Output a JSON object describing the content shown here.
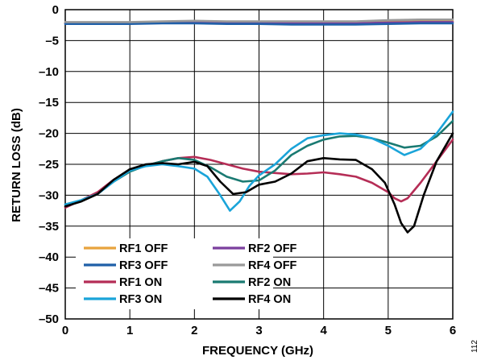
{
  "chart_data": {
    "type": "line",
    "xlabel": "FREQUENCY (GHz)",
    "ylabel": "RETURN LOSS (dB)",
    "xlim": [
      0,
      6
    ],
    "ylim": [
      -50,
      0
    ],
    "x_ticks": [
      0,
      1,
      2,
      3,
      4,
      5,
      6
    ],
    "y_ticks": [
      0,
      -5,
      -10,
      -15,
      -20,
      -25,
      -30,
      -35,
      -40,
      -45,
      -50
    ],
    "grid": true,
    "legend_position": "bottom-left",
    "figure_id": "112",
    "series": [
      {
        "name": "RF1 OFF",
        "color": "#E8A33D",
        "x": [
          0,
          0.5,
          1,
          1.5,
          2,
          2.5,
          3,
          3.5,
          4,
          4.5,
          5,
          5.5,
          6
        ],
        "y": [
          -2.1,
          -2.1,
          -2.1,
          -2.1,
          -2.0,
          -2.0,
          -2.0,
          -2.0,
          -2.1,
          -2.1,
          -2.0,
          -1.9,
          -1.9
        ]
      },
      {
        "name": "RF2 OFF",
        "color": "#7B3F9E",
        "x": [
          0,
          0.5,
          1,
          1.5,
          2,
          2.5,
          3,
          3.5,
          4,
          4.5,
          5,
          5.5,
          6
        ],
        "y": [
          -2.2,
          -2.2,
          -2.2,
          -2.1,
          -2.1,
          -2.1,
          -2.1,
          -2.2,
          -2.2,
          -2.2,
          -2.1,
          -2.0,
          -2.0
        ]
      },
      {
        "name": "RF3 OFF",
        "color": "#1F5FA8",
        "x": [
          0,
          0.5,
          1,
          1.5,
          2,
          2.5,
          3,
          3.5,
          4,
          4.5,
          5,
          5.5,
          6
        ],
        "y": [
          -2.3,
          -2.3,
          -2.3,
          -2.2,
          -2.2,
          -2.3,
          -2.3,
          -2.4,
          -2.4,
          -2.4,
          -2.3,
          -2.2,
          -2.2
        ]
      },
      {
        "name": "RF4 OFF",
        "color": "#999999",
        "x": [
          0,
          0.5,
          1,
          1.5,
          2,
          2.5,
          3,
          3.5,
          4,
          4.5,
          5,
          5.5,
          6
        ],
        "y": [
          -2.0,
          -2.0,
          -2.0,
          -1.9,
          -1.8,
          -1.9,
          -1.9,
          -1.9,
          -1.9,
          -1.9,
          -1.7,
          -1.6,
          -1.6
        ]
      },
      {
        "name": "RF1 ON",
        "color": "#B52D56",
        "x": [
          0,
          0.25,
          0.5,
          0.75,
          1,
          1.25,
          1.5,
          1.75,
          2,
          2.25,
          2.5,
          2.75,
          3,
          3.25,
          3.5,
          3.75,
          4,
          4.25,
          4.5,
          4.75,
          5,
          5.1,
          5.2,
          5.3,
          5.5,
          5.75,
          6
        ],
        "y": [
          -32,
          -30.8,
          -29.5,
          -27.5,
          -26,
          -25.2,
          -24.5,
          -24.0,
          -23.8,
          -24.3,
          -25.0,
          -25.7,
          -26.2,
          -26.4,
          -26.6,
          -26.5,
          -26.3,
          -26.6,
          -27.0,
          -28.0,
          -29.5,
          -30.5,
          -31.0,
          -30.5,
          -28.0,
          -24.5,
          -21.0
        ]
      },
      {
        "name": "RF2 ON",
        "color": "#1A7A72",
        "x": [
          0,
          0.25,
          0.5,
          0.75,
          1,
          1.25,
          1.5,
          1.75,
          2,
          2.25,
          2.5,
          2.75,
          3,
          3.25,
          3.5,
          3.75,
          4,
          4.25,
          4.5,
          4.75,
          5,
          5.25,
          5.5,
          5.75,
          6
        ],
        "y": [
          -31.5,
          -30.8,
          -29.8,
          -27.8,
          -26.2,
          -25.2,
          -24.5,
          -24.0,
          -24.3,
          -25.5,
          -27.0,
          -27.8,
          -27.6,
          -26.0,
          -23.5,
          -22.0,
          -21.0,
          -20.5,
          -20.4,
          -20.8,
          -21.5,
          -22.3,
          -22.0,
          -20.5,
          -18.0
        ]
      },
      {
        "name": "RF3 ON",
        "color": "#1AA4D9",
        "x": [
          0,
          0.25,
          0.5,
          0.75,
          1,
          1.25,
          1.5,
          1.75,
          2,
          2.2,
          2.4,
          2.55,
          2.7,
          2.85,
          3,
          3.25,
          3.5,
          3.75,
          4,
          4.25,
          4.5,
          4.75,
          5,
          5.25,
          5.5,
          5.75,
          6
        ],
        "y": [
          -31.5,
          -30.8,
          -29.8,
          -27.8,
          -26.0,
          -25.3,
          -25.0,
          -25.3,
          -25.7,
          -27.0,
          -30.0,
          -32.5,
          -31.0,
          -28.5,
          -26.8,
          -25.0,
          -22.5,
          -20.8,
          -20.3,
          -20.0,
          -20.2,
          -20.8,
          -22.0,
          -23.5,
          -22.5,
          -20.0,
          -16.5
        ]
      },
      {
        "name": "RF4 ON",
        "color": "#000000",
        "x": [
          0,
          0.25,
          0.5,
          0.75,
          1,
          1.25,
          1.5,
          1.75,
          2,
          2.2,
          2.4,
          2.6,
          2.8,
          3,
          3.25,
          3.5,
          3.75,
          4,
          4.25,
          4.5,
          4.75,
          4.95,
          5.1,
          5.2,
          5.3,
          5.4,
          5.55,
          5.75,
          6
        ],
        "y": [
          -31.8,
          -31.0,
          -29.8,
          -27.5,
          -25.8,
          -25.0,
          -24.8,
          -25.0,
          -24.6,
          -25.3,
          -27.8,
          -29.8,
          -29.5,
          -28.3,
          -27.8,
          -26.5,
          -24.5,
          -24.0,
          -24.2,
          -24.3,
          -25.8,
          -28.0,
          -31.5,
          -34.5,
          -36.0,
          -35.0,
          -30.0,
          -24.5,
          -20.0
        ]
      }
    ]
  }
}
